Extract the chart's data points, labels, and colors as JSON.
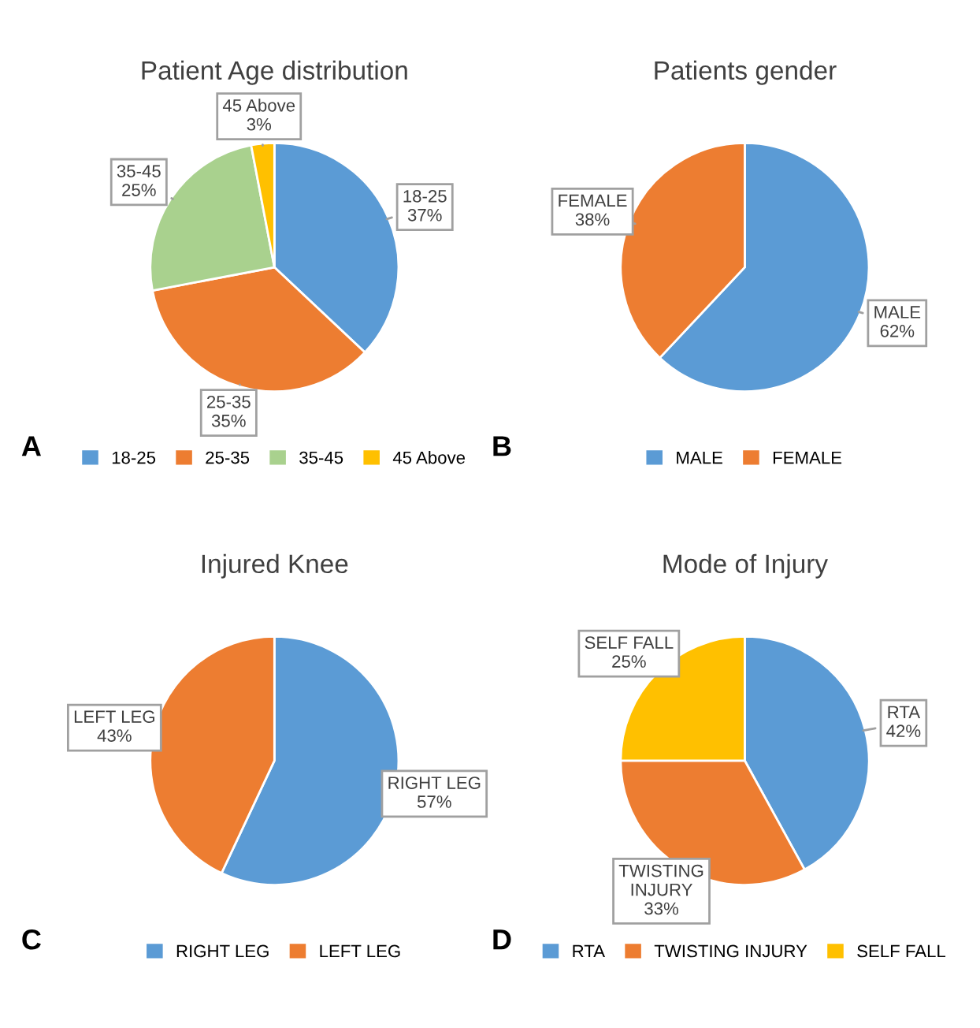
{
  "chart_data": [
    {
      "type": "pie",
      "title": "Patient Age distribution",
      "categories": [
        "18-25",
        "25-35",
        "35-45",
        "45 Above"
      ],
      "values": [
        37,
        35,
        25,
        3
      ],
      "colors": [
        "#5b9bd5",
        "#ed7d31",
        "#a9d18e",
        "#ffc000"
      ],
      "value_labels": [
        "18-25\n37%",
        "25-35\n35%",
        "35-45\n25%",
        "45 Above\n3%"
      ],
      "legend": "bottom",
      "annotations": [
        "A"
      ]
    },
    {
      "type": "pie",
      "title": "Patients gender",
      "categories": [
        "MALE",
        "FEMALE"
      ],
      "values": [
        62,
        38
      ],
      "colors": [
        "#5b9bd5",
        "#ed7d31"
      ],
      "value_labels": [
        "MALE\n62%",
        "FEMALE\n38%"
      ],
      "legend": "bottom",
      "annotations": [
        "B"
      ]
    },
    {
      "type": "pie",
      "title": "Injured Knee",
      "categories": [
        "RIGHT LEG",
        "LEFT LEG"
      ],
      "values": [
        57,
        43
      ],
      "colors": [
        "#5b9bd5",
        "#ed7d31"
      ],
      "value_labels": [
        "RIGHT LEG\n57%",
        "LEFT LEG\n43%"
      ],
      "legend": "bottom",
      "annotations": [
        "C"
      ]
    },
    {
      "type": "pie",
      "title": "Mode of Injury",
      "categories": [
        "RTA",
        "TWISTING INJURY",
        "SELF FALL"
      ],
      "values": [
        42,
        33,
        25
      ],
      "colors": [
        "#5b9bd5",
        "#ed7d31",
        "#ffc000"
      ],
      "value_labels": [
        "RTA\n42%",
        "TWISTING\nINJURY\n33%",
        "SELF FALL\n25%"
      ],
      "legend": "bottom",
      "annotations": [
        "D"
      ]
    }
  ]
}
